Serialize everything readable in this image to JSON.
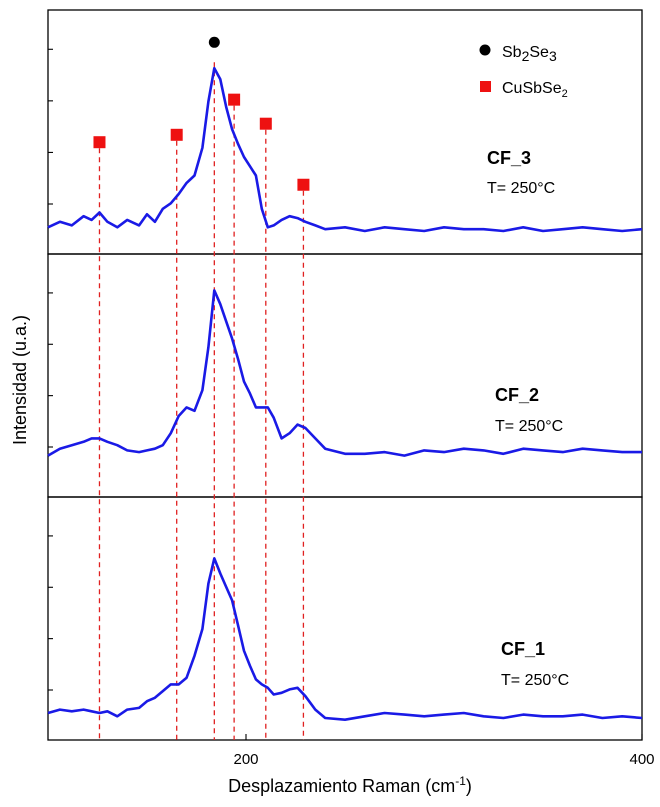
{
  "chart_data": {
    "type": "line",
    "xlabel": "Desplazamiento Raman (cm",
    "xlabel_sup": "-1",
    "xlabel_end": ")",
    "ylabel": "Intensidad (u.a.)",
    "xlim": [
      100,
      400
    ],
    "x_ticks": [
      200,
      400
    ],
    "y_ticks_per_panel": 4,
    "line_color": "#1a1ae6",
    "marker_line_color": "#e02020",
    "legend_position": "top-right",
    "legend": [
      {
        "label_base": "Sb",
        "sub1": "2",
        "label_mid": "Se",
        "sub2": "3",
        "marker": "circle",
        "color": "#000000"
      },
      {
        "label_base": "CuSbSe",
        "sub1": "2",
        "label_mid": "",
        "sub2": "",
        "marker": "square",
        "color": "#ee1111"
      }
    ],
    "reference_lines": {
      "Sb2Se3": [
        184
      ],
      "CuSbSe2": [
        126,
        165,
        194,
        210,
        229
      ]
    },
    "panels": [
      {
        "name": "CF_3",
        "condition": "T= 250°C",
        "x": [
          100,
          106,
          112,
          118,
          122,
          126,
          130,
          135,
          140,
          146,
          150,
          154,
          158,
          162,
          166,
          170,
          174,
          178,
          181,
          184,
          187,
          190,
          193,
          196,
          199,
          202,
          205,
          208,
          211,
          214,
          218,
          222,
          226,
          230,
          235,
          240,
          250,
          260,
          270,
          280,
          290,
          300,
          310,
          320,
          330,
          340,
          350,
          360,
          370,
          380,
          390,
          400
        ],
        "y": [
          0.02,
          0.05,
          0.03,
          0.08,
          0.06,
          0.1,
          0.05,
          0.02,
          0.06,
          0.03,
          0.09,
          0.05,
          0.12,
          0.15,
          0.2,
          0.26,
          0.3,
          0.45,
          0.7,
          0.88,
          0.82,
          0.67,
          0.55,
          0.47,
          0.4,
          0.35,
          0.3,
          0.12,
          0.02,
          0.03,
          0.06,
          0.08,
          0.07,
          0.05,
          0.03,
          0.01,
          0.02,
          0.0,
          0.02,
          0.01,
          0.0,
          0.02,
          0.01,
          0.01,
          0.0,
          0.02,
          0.0,
          0.01,
          0.02,
          0.01,
          0.0,
          0.01
        ],
        "marker_y": [
          0.48,
          0.52,
          0.71,
          0.58,
          0.25
        ],
        "sb_marker_y": 1.02
      },
      {
        "name": "CF_2",
        "condition": "T= 250°C",
        "x": [
          100,
          106,
          112,
          118,
          122,
          126,
          130,
          135,
          140,
          146,
          150,
          154,
          158,
          162,
          166,
          170,
          174,
          178,
          181,
          184,
          187,
          190,
          193,
          196,
          199,
          202,
          205,
          208,
          211,
          214,
          218,
          222,
          226,
          230,
          235,
          240,
          250,
          260,
          270,
          280,
          290,
          300,
          310,
          320,
          330,
          340,
          350,
          360,
          370,
          380,
          390,
          400
        ],
        "y": [
          0.02,
          0.06,
          0.08,
          0.1,
          0.12,
          0.12,
          0.1,
          0.08,
          0.05,
          0.04,
          0.05,
          0.06,
          0.08,
          0.15,
          0.25,
          0.3,
          0.28,
          0.4,
          0.65,
          0.98,
          0.9,
          0.8,
          0.7,
          0.58,
          0.45,
          0.38,
          0.3,
          0.3,
          0.3,
          0.24,
          0.12,
          0.15,
          0.2,
          0.18,
          0.12,
          0.06,
          0.03,
          0.03,
          0.04,
          0.02,
          0.05,
          0.04,
          0.06,
          0.05,
          0.03,
          0.06,
          0.05,
          0.04,
          0.06,
          0.05,
          0.04,
          0.04
        ]
      },
      {
        "name": "CF_1",
        "condition": "T= 250°C",
        "x": [
          100,
          106,
          112,
          118,
          122,
          126,
          130,
          135,
          140,
          146,
          150,
          154,
          158,
          162,
          166,
          170,
          174,
          178,
          181,
          184,
          187,
          190,
          193,
          196,
          199,
          202,
          205,
          208,
          211,
          214,
          218,
          222,
          226,
          230,
          235,
          240,
          250,
          260,
          270,
          280,
          290,
          300,
          310,
          320,
          330,
          340,
          350,
          360,
          370,
          380,
          390,
          400
        ],
        "y": [
          0.03,
          0.05,
          0.04,
          0.05,
          0.04,
          0.03,
          0.04,
          0.01,
          0.05,
          0.06,
          0.1,
          0.12,
          0.16,
          0.2,
          0.2,
          0.24,
          0.37,
          0.53,
          0.8,
          0.95,
          0.86,
          0.78,
          0.7,
          0.55,
          0.4,
          0.31,
          0.23,
          0.2,
          0.18,
          0.14,
          0.15,
          0.17,
          0.18,
          0.13,
          0.05,
          0.0,
          -0.01,
          0.01,
          0.03,
          0.02,
          0.01,
          0.02,
          0.03,
          0.01,
          0.0,
          0.02,
          0.01,
          0.01,
          0.02,
          0.0,
          0.01,
          0.0
        ]
      }
    ]
  }
}
